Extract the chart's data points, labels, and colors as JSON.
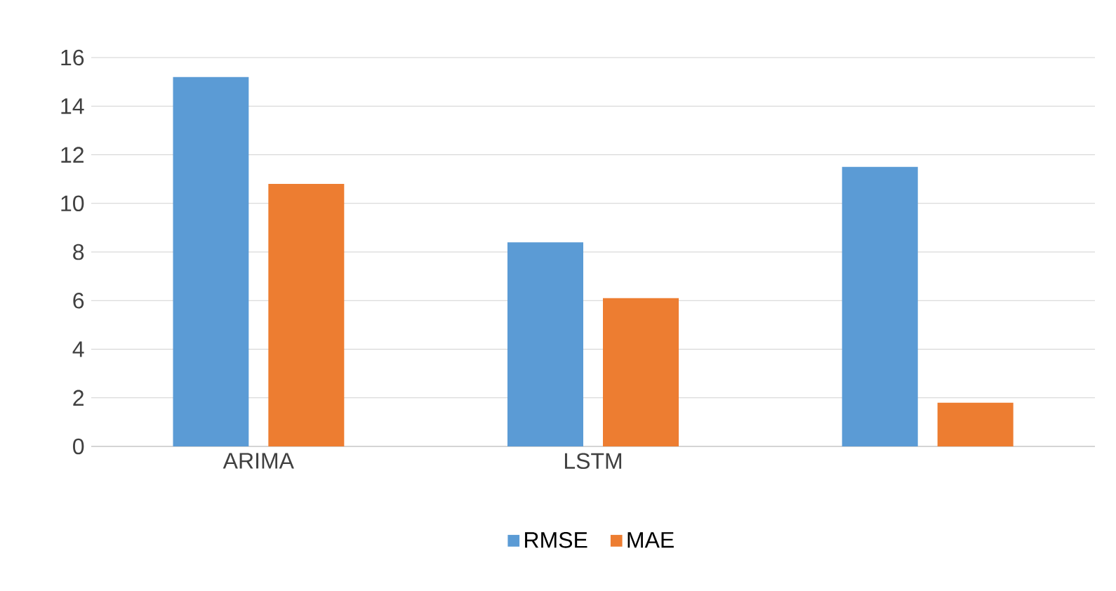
{
  "chart_data": {
    "type": "bar",
    "categories": [
      "ARIMA",
      "LSTM",
      null
    ],
    "series": [
      {
        "name": "RMSE",
        "color": "#5b9bd5",
        "values": [
          15.2,
          8.4,
          11.5
        ]
      },
      {
        "name": "MAE",
        "color": "#ed7d31",
        "values": [
          10.8,
          6.1,
          1.8
        ]
      }
    ],
    "ylim": [
      0,
      16
    ],
    "yticks": [
      0,
      2,
      4,
      6,
      8,
      10,
      12,
      14,
      16
    ],
    "grid": "y",
    "legend": "bottom"
  }
}
